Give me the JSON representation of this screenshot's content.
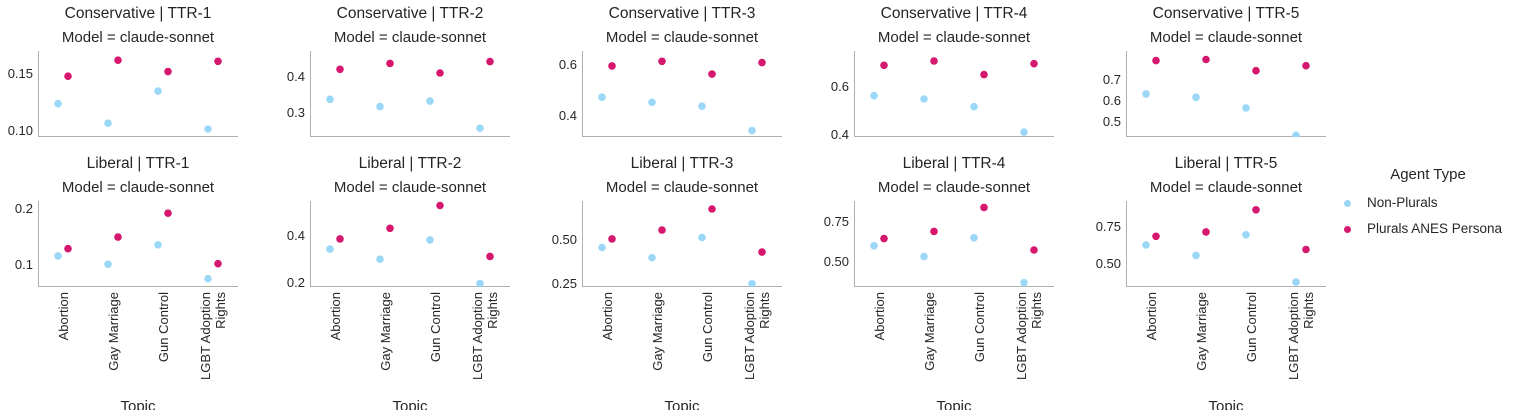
{
  "palette": {
    "non_plurals": "#9bd7f7",
    "plurals": "#d5176e",
    "axis": "#b0b0b0",
    "text": "#262626"
  },
  "legend": {
    "title": "Agent Type",
    "items": [
      {
        "label": "Non-Plurals",
        "color_key": "non_plurals"
      },
      {
        "label": "Plurals ANES Persona",
        "color_key": "plurals"
      }
    ]
  },
  "x_axis": {
    "title": "Topic",
    "categories": [
      "Abortion",
      "Gay Marriage",
      "Gun Control",
      "LGBT Adoption Rights"
    ],
    "display_categories": [
      "Abortion",
      "Gay Marriage",
      "Gun Control",
      "LGBT Adoption\nRights"
    ]
  },
  "chart_data": [
    {
      "type": "scatter",
      "title": "Conservative | TTR-1",
      "subtitle": "Model = claude-sonnet",
      "categories": [
        "Abortion",
        "Gay Marriage",
        "Gun Control",
        "LGBT Adoption Rights"
      ],
      "series": [
        {
          "name": "Non-Plurals",
          "values": [
            0.124,
            0.107,
            0.135,
            0.102
          ]
        },
        {
          "name": "Plurals ANES Persona",
          "values": [
            0.148,
            0.162,
            0.152,
            0.161
          ]
        }
      ],
      "yticks": [
        0.15,
        0.1
      ],
      "ytick_labels": [
        "0.15",
        "0.10"
      ],
      "ylim": [
        0.095,
        0.17
      ]
    },
    {
      "type": "scatter",
      "title": "Conservative | TTR-2",
      "subtitle": "Model = claude-sonnet",
      "categories": [
        "Abortion",
        "Gay Marriage",
        "Gun Control",
        "LGBT Adoption Rights"
      ],
      "series": [
        {
          "name": "Non-Plurals",
          "values": [
            0.338,
            0.318,
            0.333,
            0.259
          ]
        },
        {
          "name": "Plurals ANES Persona",
          "values": [
            0.42,
            0.436,
            0.41,
            0.441
          ]
        }
      ],
      "yticks": [
        0.4,
        0.3
      ],
      "ytick_labels": [
        "0.4",
        "0.3"
      ],
      "ylim": [
        0.235,
        0.47
      ]
    },
    {
      "type": "scatter",
      "title": "Conservative | TTR-3",
      "subtitle": "Model = claude-sonnet",
      "categories": [
        "Abortion",
        "Gay Marriage",
        "Gun Control",
        "LGBT Adoption Rights"
      ],
      "series": [
        {
          "name": "Non-Plurals",
          "values": [
            0.475,
            0.455,
            0.44,
            0.345
          ]
        },
        {
          "name": "Plurals ANES Persona",
          "values": [
            0.597,
            0.615,
            0.565,
            0.61
          ]
        }
      ],
      "yticks": [
        0.6,
        0.4
      ],
      "ytick_labels": [
        "0.6",
        "0.4"
      ],
      "ylim": [
        0.32,
        0.655
      ]
    },
    {
      "type": "scatter",
      "title": "Conservative | TTR-4",
      "subtitle": "Model = claude-sonnet",
      "categories": [
        "Abortion",
        "Gay Marriage",
        "Gun Control",
        "LGBT Adoption Rights"
      ],
      "series": [
        {
          "name": "Non-Plurals",
          "values": [
            0.563,
            0.549,
            0.517,
            0.41
          ]
        },
        {
          "name": "Plurals ANES Persona",
          "values": [
            0.69,
            0.708,
            0.651,
            0.697
          ]
        }
      ],
      "yticks": [
        0.6,
        0.4
      ],
      "ytick_labels": [
        "0.6",
        "0.4"
      ],
      "ylim": [
        0.39,
        0.75
      ]
    },
    {
      "type": "scatter",
      "title": "Conservative | TTR-5",
      "subtitle": "Model = claude-sonnet",
      "categories": [
        "Abortion",
        "Gay Marriage",
        "Gun Control",
        "LGBT Adoption Rights"
      ],
      "series": [
        {
          "name": "Non-Plurals",
          "values": [
            0.633,
            0.617,
            0.567,
            0.438
          ]
        },
        {
          "name": "Plurals ANES Persona",
          "values": [
            0.79,
            0.795,
            0.742,
            0.766
          ]
        }
      ],
      "yticks": [
        0.7,
        0.6,
        0.5
      ],
      "ytick_labels": [
        "0.7",
        "0.6",
        "0.5"
      ],
      "ylim": [
        0.43,
        0.835
      ]
    },
    {
      "type": "scatter",
      "title": "Liberal | TTR-1",
      "subtitle": "Model = claude-sonnet",
      "categories": [
        "Abortion",
        "Gay Marriage",
        "Gun Control",
        "LGBT Adoption Rights"
      ],
      "series": [
        {
          "name": "Non-Plurals",
          "values": [
            0.116,
            0.101,
            0.136,
            0.075
          ]
        },
        {
          "name": "Plurals ANES Persona",
          "values": [
            0.129,
            0.15,
            0.193,
            0.102
          ]
        }
      ],
      "yticks": [
        0.2,
        0.1
      ],
      "ytick_labels": [
        "0.2",
        "0.1"
      ],
      "ylim": [
        0.06,
        0.215
      ]
    },
    {
      "type": "scatter",
      "title": "Liberal | TTR-2",
      "subtitle": "Model = claude-sonnet",
      "categories": [
        "Abortion",
        "Gay Marriage",
        "Gun Control",
        "LGBT Adoption Rights"
      ],
      "series": [
        {
          "name": "Non-Plurals",
          "values": [
            0.346,
            0.303,
            0.385,
            0.2
          ]
        },
        {
          "name": "Plurals ANES Persona",
          "values": [
            0.389,
            0.434,
            0.531,
            0.315
          ]
        }
      ],
      "yticks": [
        0.4,
        0.2
      ],
      "ytick_labels": [
        "0.4",
        "0.2"
      ],
      "ylim": [
        0.185,
        0.55
      ]
    },
    {
      "type": "scatter",
      "title": "Liberal | TTR-3",
      "subtitle": "Model = claude-sonnet",
      "categories": [
        "Abortion",
        "Gay Marriage",
        "Gun Control",
        "LGBT Adoption Rights"
      ],
      "series": [
        {
          "name": "Non-Plurals",
          "values": [
            0.458,
            0.4,
            0.514,
            0.253
          ]
        },
        {
          "name": "Plurals ANES Persona",
          "values": [
            0.506,
            0.556,
            0.675,
            0.432
          ]
        }
      ],
      "yticks": [
        0.5,
        0.25
      ],
      "ytick_labels": [
        "0.50",
        "0.25"
      ],
      "ylim": [
        0.235,
        0.72
      ]
    },
    {
      "type": "scatter",
      "title": "Liberal | TTR-4",
      "subtitle": "Model = claude-sonnet",
      "categories": [
        "Abortion",
        "Gay Marriage",
        "Gun Control",
        "LGBT Adoption Rights"
      ],
      "series": [
        {
          "name": "Non-Plurals",
          "values": [
            0.6,
            0.533,
            0.65,
            0.37
          ]
        },
        {
          "name": "Plurals ANES Persona",
          "values": [
            0.645,
            0.69,
            0.84,
            0.574
          ]
        }
      ],
      "yticks": [
        0.75,
        0.5
      ],
      "ytick_labels": [
        "0.75",
        "0.50"
      ],
      "ylim": [
        0.343,
        0.88
      ]
    },
    {
      "type": "scatter",
      "title": "Liberal | TTR-5",
      "subtitle": "Model = claude-sonnet",
      "categories": [
        "Abortion",
        "Gay Marriage",
        "Gun Control",
        "LGBT Adoption Rights"
      ],
      "series": [
        {
          "name": "Non-Plurals",
          "values": [
            0.631,
            0.56,
            0.7,
            0.38
          ]
        },
        {
          "name": "Plurals ANES Persona",
          "values": [
            0.69,
            0.72,
            0.87,
            0.6
          ]
        }
      ],
      "yticks": [
        0.75,
        0.5
      ],
      "ytick_labels": [
        "0.75",
        "0.50"
      ],
      "ylim": [
        0.345,
        0.93
      ]
    }
  ]
}
